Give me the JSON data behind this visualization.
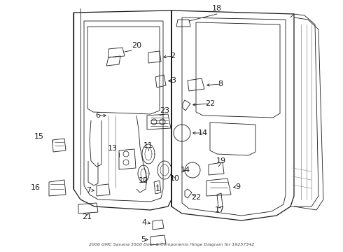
{
  "title": "2006 GMC Savana 3500 Door & Components Hinge Diagram for 19257342",
  "bg_color": "#ffffff",
  "fig_width": 4.9,
  "fig_height": 3.6,
  "dpi": 100,
  "line_color": "#1a1a1a",
  "gray_color": "#888888",
  "lw_main": 1.2,
  "lw_thin": 0.6,
  "lw_med": 0.9,
  "label_fontsize": 7.5,
  "arrow_lw": 0.6
}
